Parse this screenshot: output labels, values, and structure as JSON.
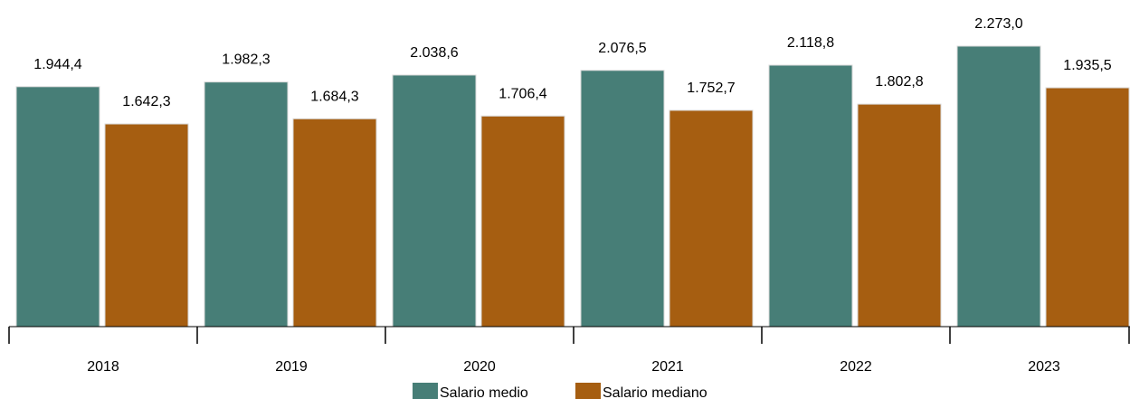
{
  "chart_data": {
    "type": "bar",
    "categories": [
      "2018",
      "2019",
      "2020",
      "2021",
      "2022",
      "2023"
    ],
    "series": [
      {
        "name": "Salario medio",
        "color": "#477e77",
        "values": [
          1944.4,
          1982.3,
          2038.6,
          2076.5,
          2118.8,
          2273.0
        ],
        "labels": [
          "1.944,4",
          "1.982,3",
          "2.038,6",
          "2.076,5",
          "2.118,8",
          "2.273,0"
        ]
      },
      {
        "name": "Salario mediano",
        "color": "#a65e11",
        "values": [
          1642.3,
          1684.3,
          1706.4,
          1752.7,
          1802.8,
          1935.5
        ],
        "labels": [
          "1.642,3",
          "1.684,3",
          "1.706,4",
          "1.752,7",
          "1.802,8",
          "1.935,5"
        ]
      }
    ],
    "ylim": [
      0,
      2400
    ],
    "grid": false,
    "legend_position": "bottom-center"
  }
}
